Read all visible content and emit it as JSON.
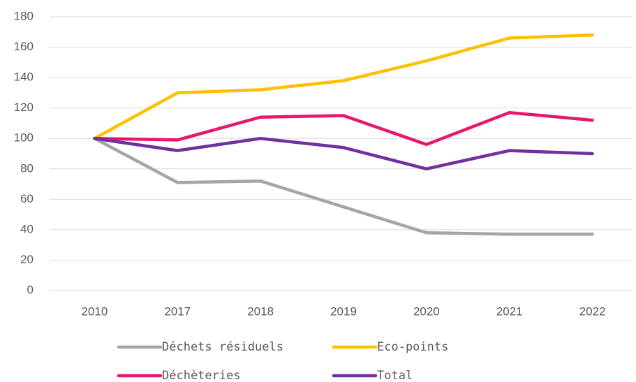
{
  "chart_data": {
    "type": "line",
    "categories": [
      "2010",
      "2017",
      "2018",
      "2019",
      "2020",
      "2021",
      "2022"
    ],
    "series": [
      {
        "name": "Déchets résiduels",
        "color": "#a5a5a5",
        "values": [
          100,
          71,
          72,
          55,
          38,
          37,
          37
        ]
      },
      {
        "name": "Eco-points",
        "color": "#ffc000",
        "values": [
          100,
          130,
          132,
          138,
          151,
          166,
          168
        ]
      },
      {
        "name": "Déchèteries",
        "color": "#e8166d",
        "values": [
          100,
          99,
          114,
          115,
          96,
          117,
          112
        ]
      },
      {
        "name": "Total",
        "color": "#7030a0",
        "values": [
          100,
          92,
          100,
          94,
          80,
          92,
          90
        ]
      }
    ],
    "ylim": [
      0,
      180
    ],
    "yticks": [
      0,
      20,
      40,
      60,
      80,
      100,
      120,
      140,
      160,
      180
    ],
    "grid": true,
    "legend": "bottom"
  }
}
